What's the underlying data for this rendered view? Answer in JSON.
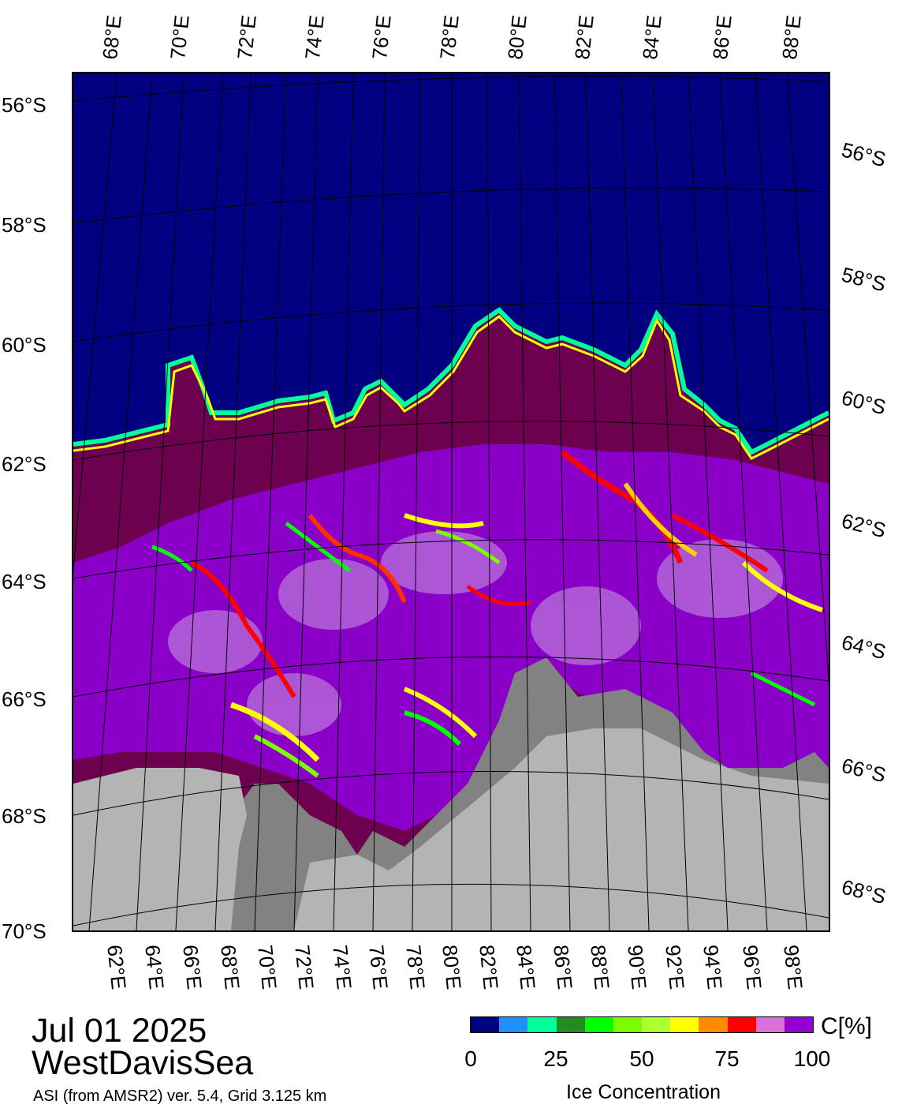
{
  "title": {
    "date": "Jul 01 2025",
    "region": "WestDavisSea",
    "source": "ASI (from AMSR2) ver. 5.4,  Grid 3.125 km"
  },
  "colors": {
    "open_water": "#000080",
    "land": "#b4b4b4",
    "ice_shelf": "#828282",
    "high_ice": "#6e0050"
  },
  "axes": {
    "top_lon_labels": [
      "68°E",
      "70°E",
      "72°E",
      "74°E",
      "76°E",
      "78°E",
      "80°E",
      "82°E",
      "84°E",
      "86°E",
      "88°E"
    ],
    "bottom_lon_labels": [
      "62°E",
      "64°E",
      "66°E",
      "68°E",
      "70°E",
      "72°E",
      "74°E",
      "76°E",
      "78°E",
      "80°E",
      "82°E",
      "84°E",
      "86°E",
      "88°E",
      "90°E",
      "92°E",
      "94°E",
      "96°E",
      "98°E"
    ],
    "left_lat_labels": [
      "56°S",
      "58°S",
      "60°S",
      "62°S",
      "64°S",
      "66°S",
      "68°S",
      "70°S"
    ],
    "right_lat_labels": [
      "56°S",
      "58°S",
      "60°S",
      "62°S",
      "64°S",
      "66°S",
      "68°S"
    ]
  },
  "colorbar": {
    "unit": "C[%]",
    "label": "Ice Concentration",
    "ticks": [
      "0",
      "25",
      "50",
      "75",
      "100"
    ],
    "colors": [
      "#000080",
      "#1e90ff",
      "#00ff9a",
      "#228b22",
      "#00ff00",
      "#7cfc00",
      "#adff2f",
      "#ffff00",
      "#ff8c00",
      "#ff0000",
      "#da70d6",
      "#9400d3"
    ]
  }
}
